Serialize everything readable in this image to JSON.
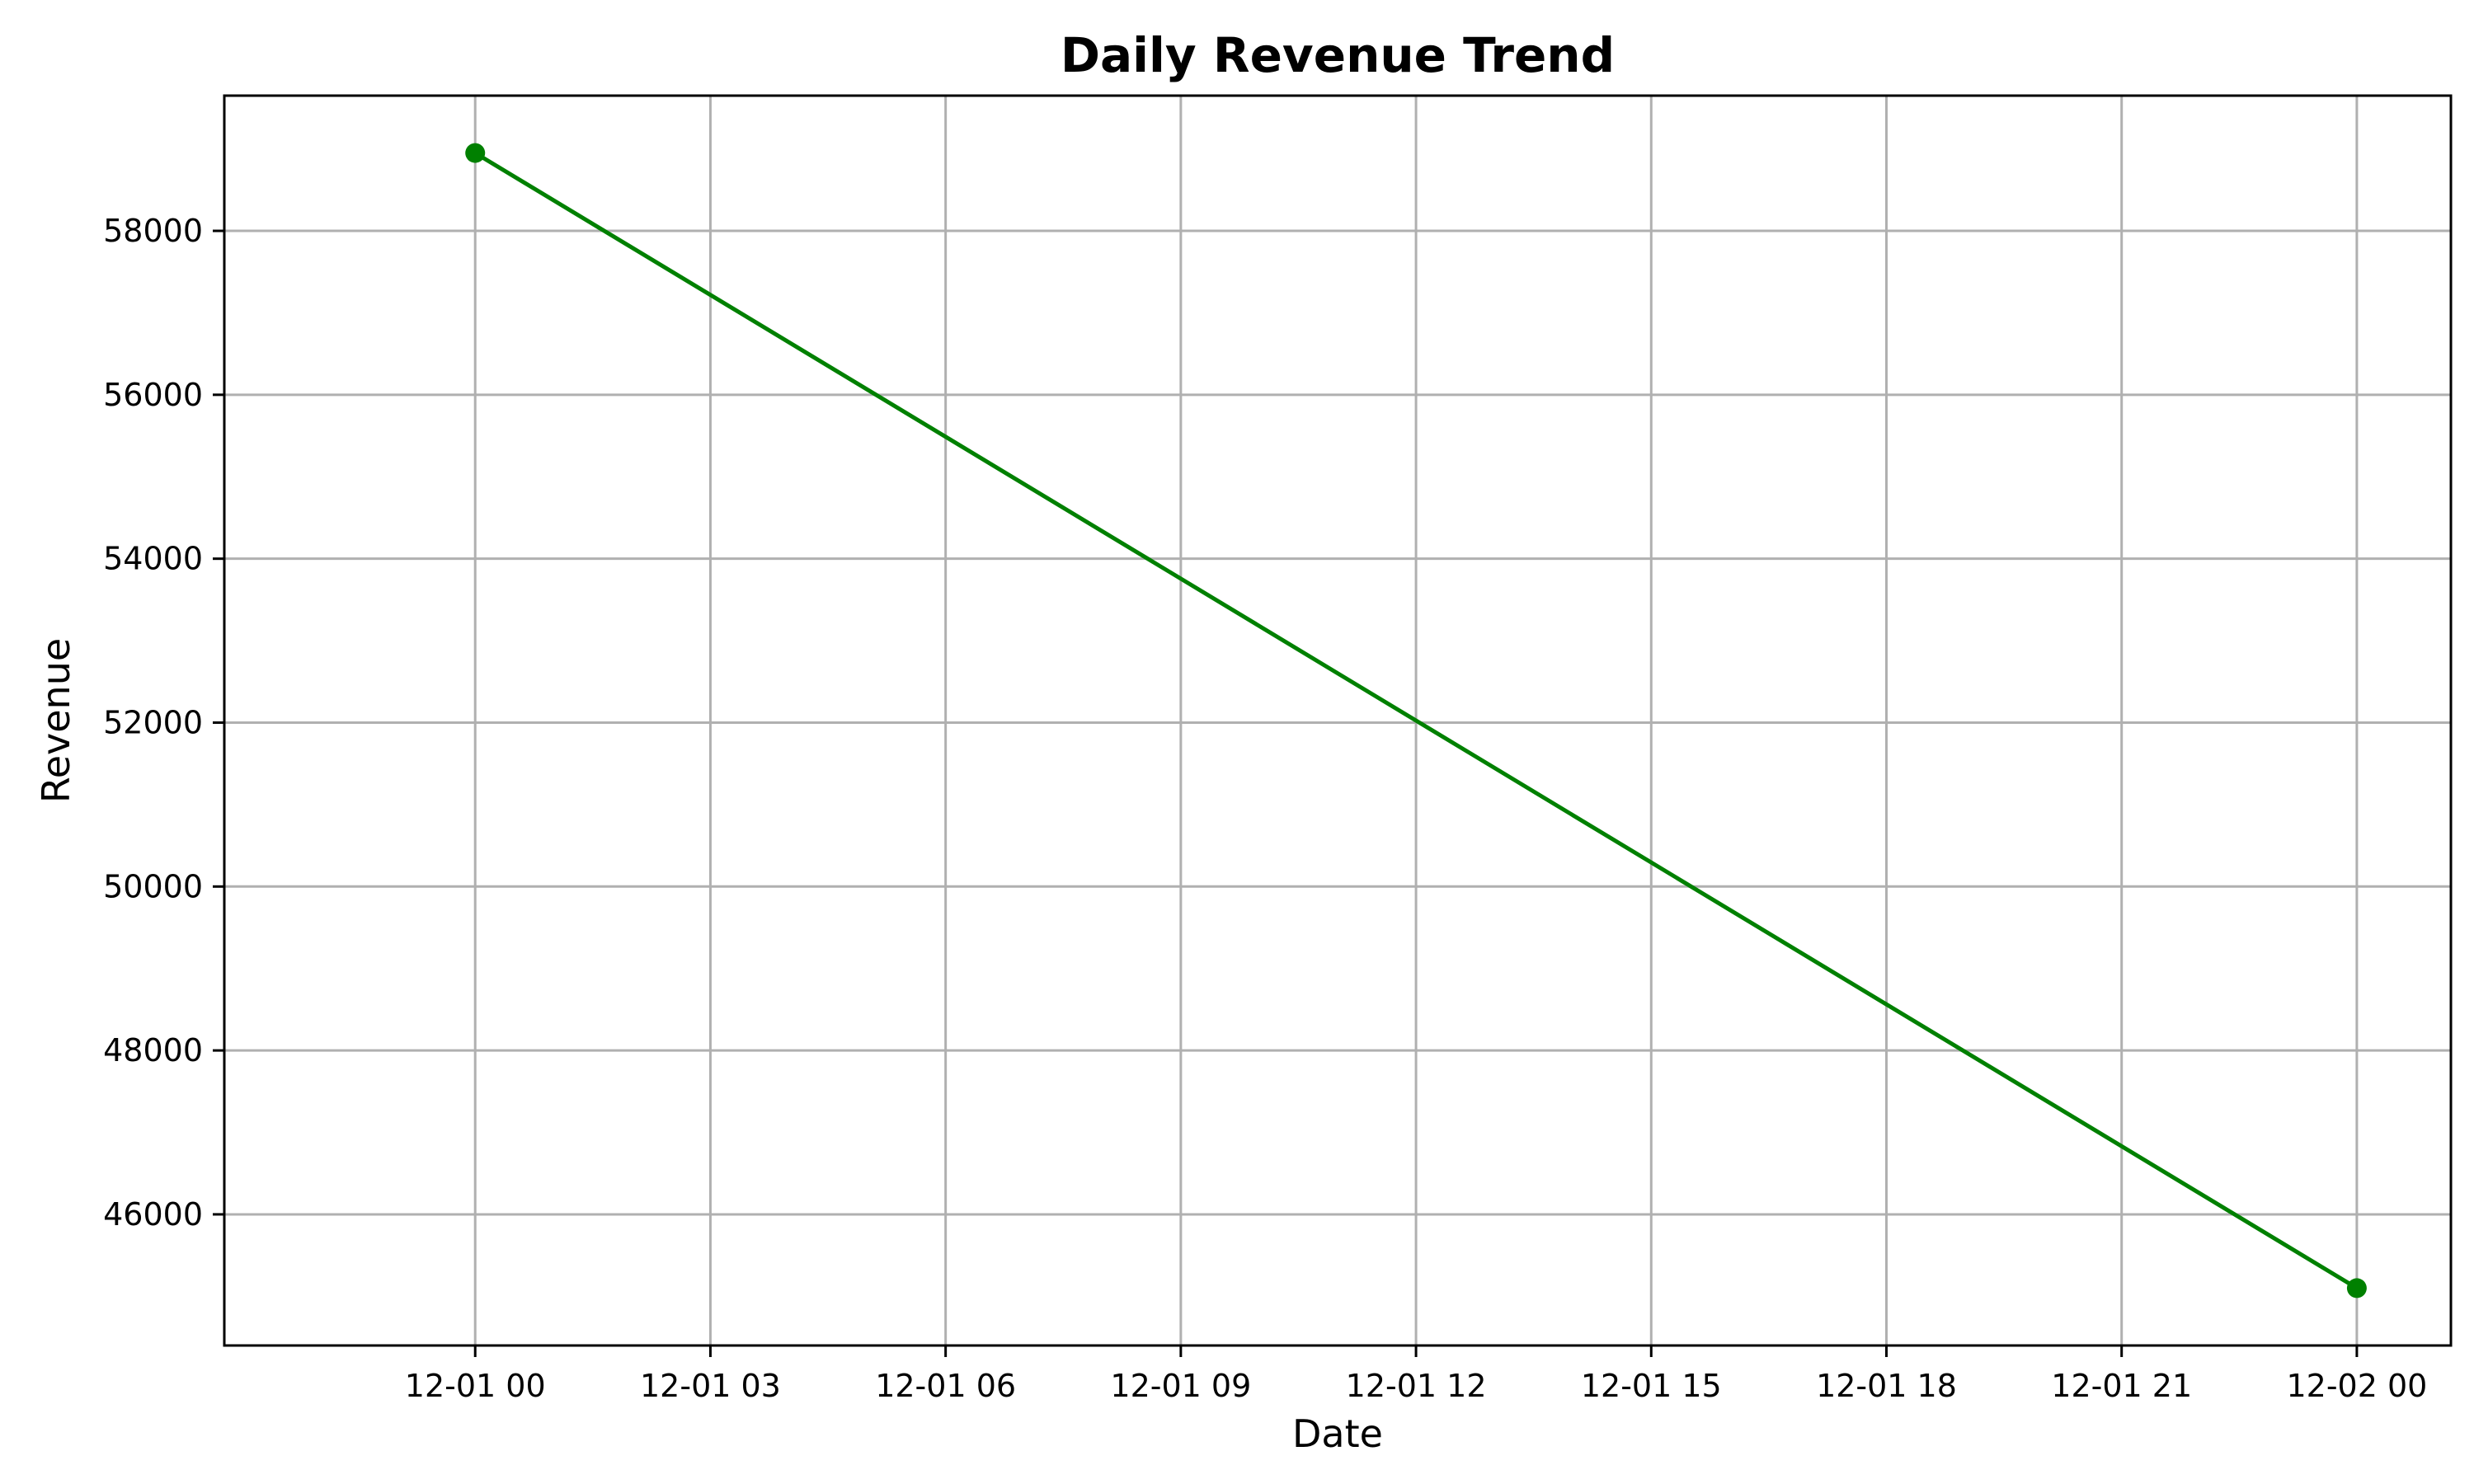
{
  "chart_data": {
    "type": "line",
    "title": "Daily Revenue Trend",
    "xlabel": "Date",
    "ylabel": "Revenue",
    "x": [
      "2023-12-01 00:00",
      "2023-12-02 00:00"
    ],
    "series": [
      {
        "values": [
          58950,
          45100
        ],
        "color": "#008000",
        "marker": "circle"
      }
    ],
    "xlim": [
      "2023-11-30 20:48",
      "2023-12-02 01:12"
    ],
    "ylim": [
      44400,
      59650
    ],
    "x_ticks": [
      {
        "value": "2023-12-01 00:00",
        "label": "12-01 00"
      },
      {
        "value": "2023-12-01 03:00",
        "label": "12-01 03"
      },
      {
        "value": "2023-12-01 06:00",
        "label": "12-01 06"
      },
      {
        "value": "2023-12-01 09:00",
        "label": "12-01 09"
      },
      {
        "value": "2023-12-01 12:00",
        "label": "12-01 12"
      },
      {
        "value": "2023-12-01 15:00",
        "label": "12-01 15"
      },
      {
        "value": "2023-12-01 18:00",
        "label": "12-01 18"
      },
      {
        "value": "2023-12-01 21:00",
        "label": "12-01 21"
      },
      {
        "value": "2023-12-02 00:00",
        "label": "12-02 00"
      }
    ],
    "y_ticks": [
      46000,
      48000,
      50000,
      52000,
      54000,
      56000,
      58000
    ],
    "grid": true,
    "legend": false
  }
}
